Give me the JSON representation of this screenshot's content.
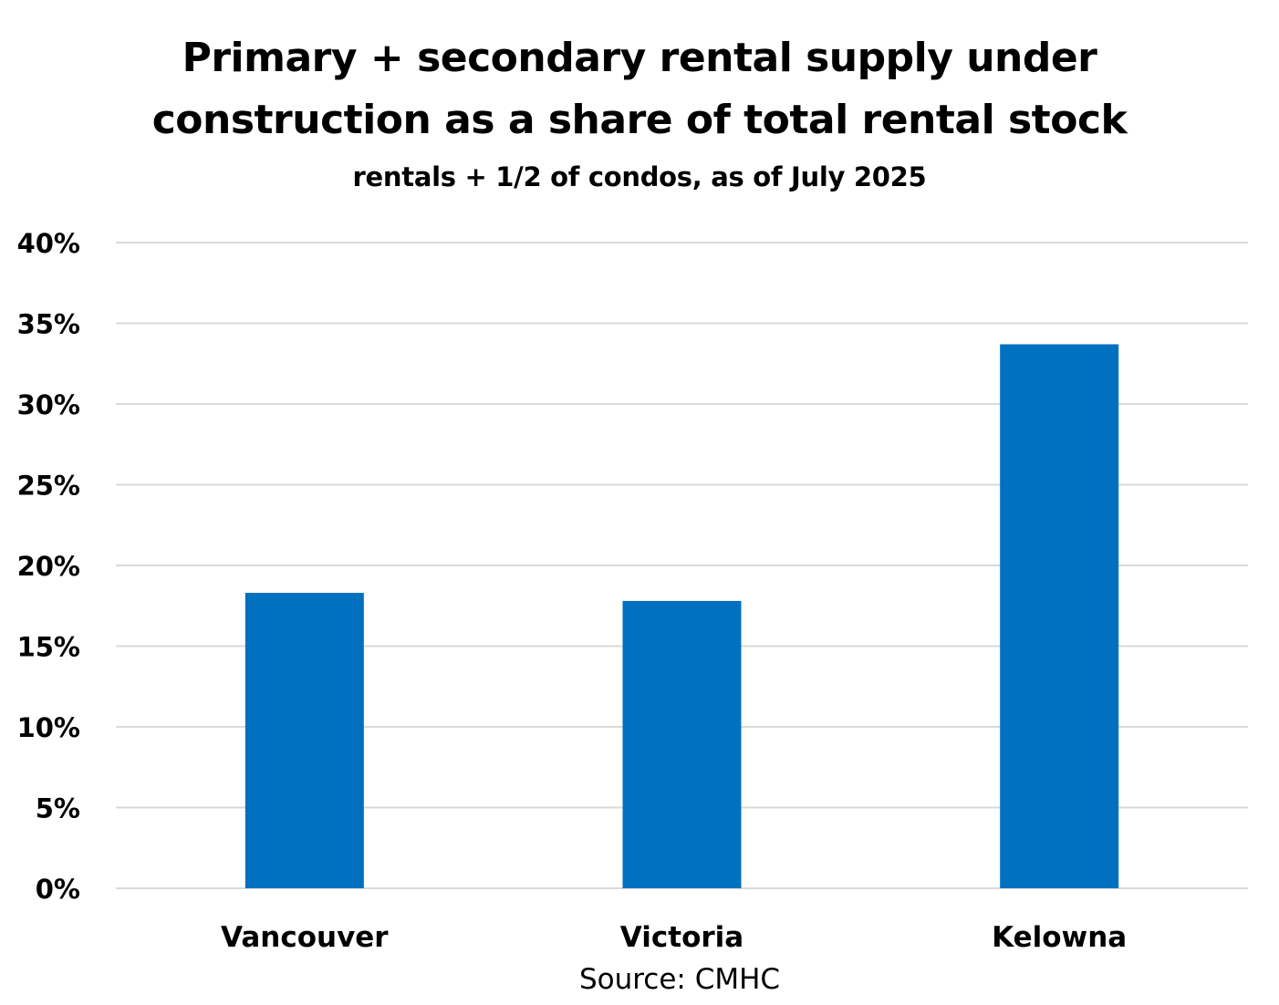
{
  "chart_data": {
    "type": "bar",
    "title_lines": [
      "Primary + secondary rental supply under",
      "construction as a share of total rental stock"
    ],
    "subtitle": "rentals + 1/2 of condos, as of July 2025",
    "categories": [
      "Vancouver",
      "Victoria",
      "Kelowna"
    ],
    "values": [
      18.3,
      17.8,
      33.7
    ],
    "value_unit": "%",
    "ylim": [
      0,
      40
    ],
    "yticks": [
      0,
      5,
      10,
      15,
      20,
      25,
      30,
      35,
      40
    ],
    "ytick_labels": [
      "0%",
      "5%",
      "10%",
      "15%",
      "20%",
      "25%",
      "30%",
      "35%",
      "40%"
    ],
    "xlabel": "",
    "ylabel": "",
    "grid": true,
    "legend": "none",
    "bar_color": "#0070C0",
    "grid_color": "#D9D9D9",
    "source_note": "Source:  CMHC"
  }
}
